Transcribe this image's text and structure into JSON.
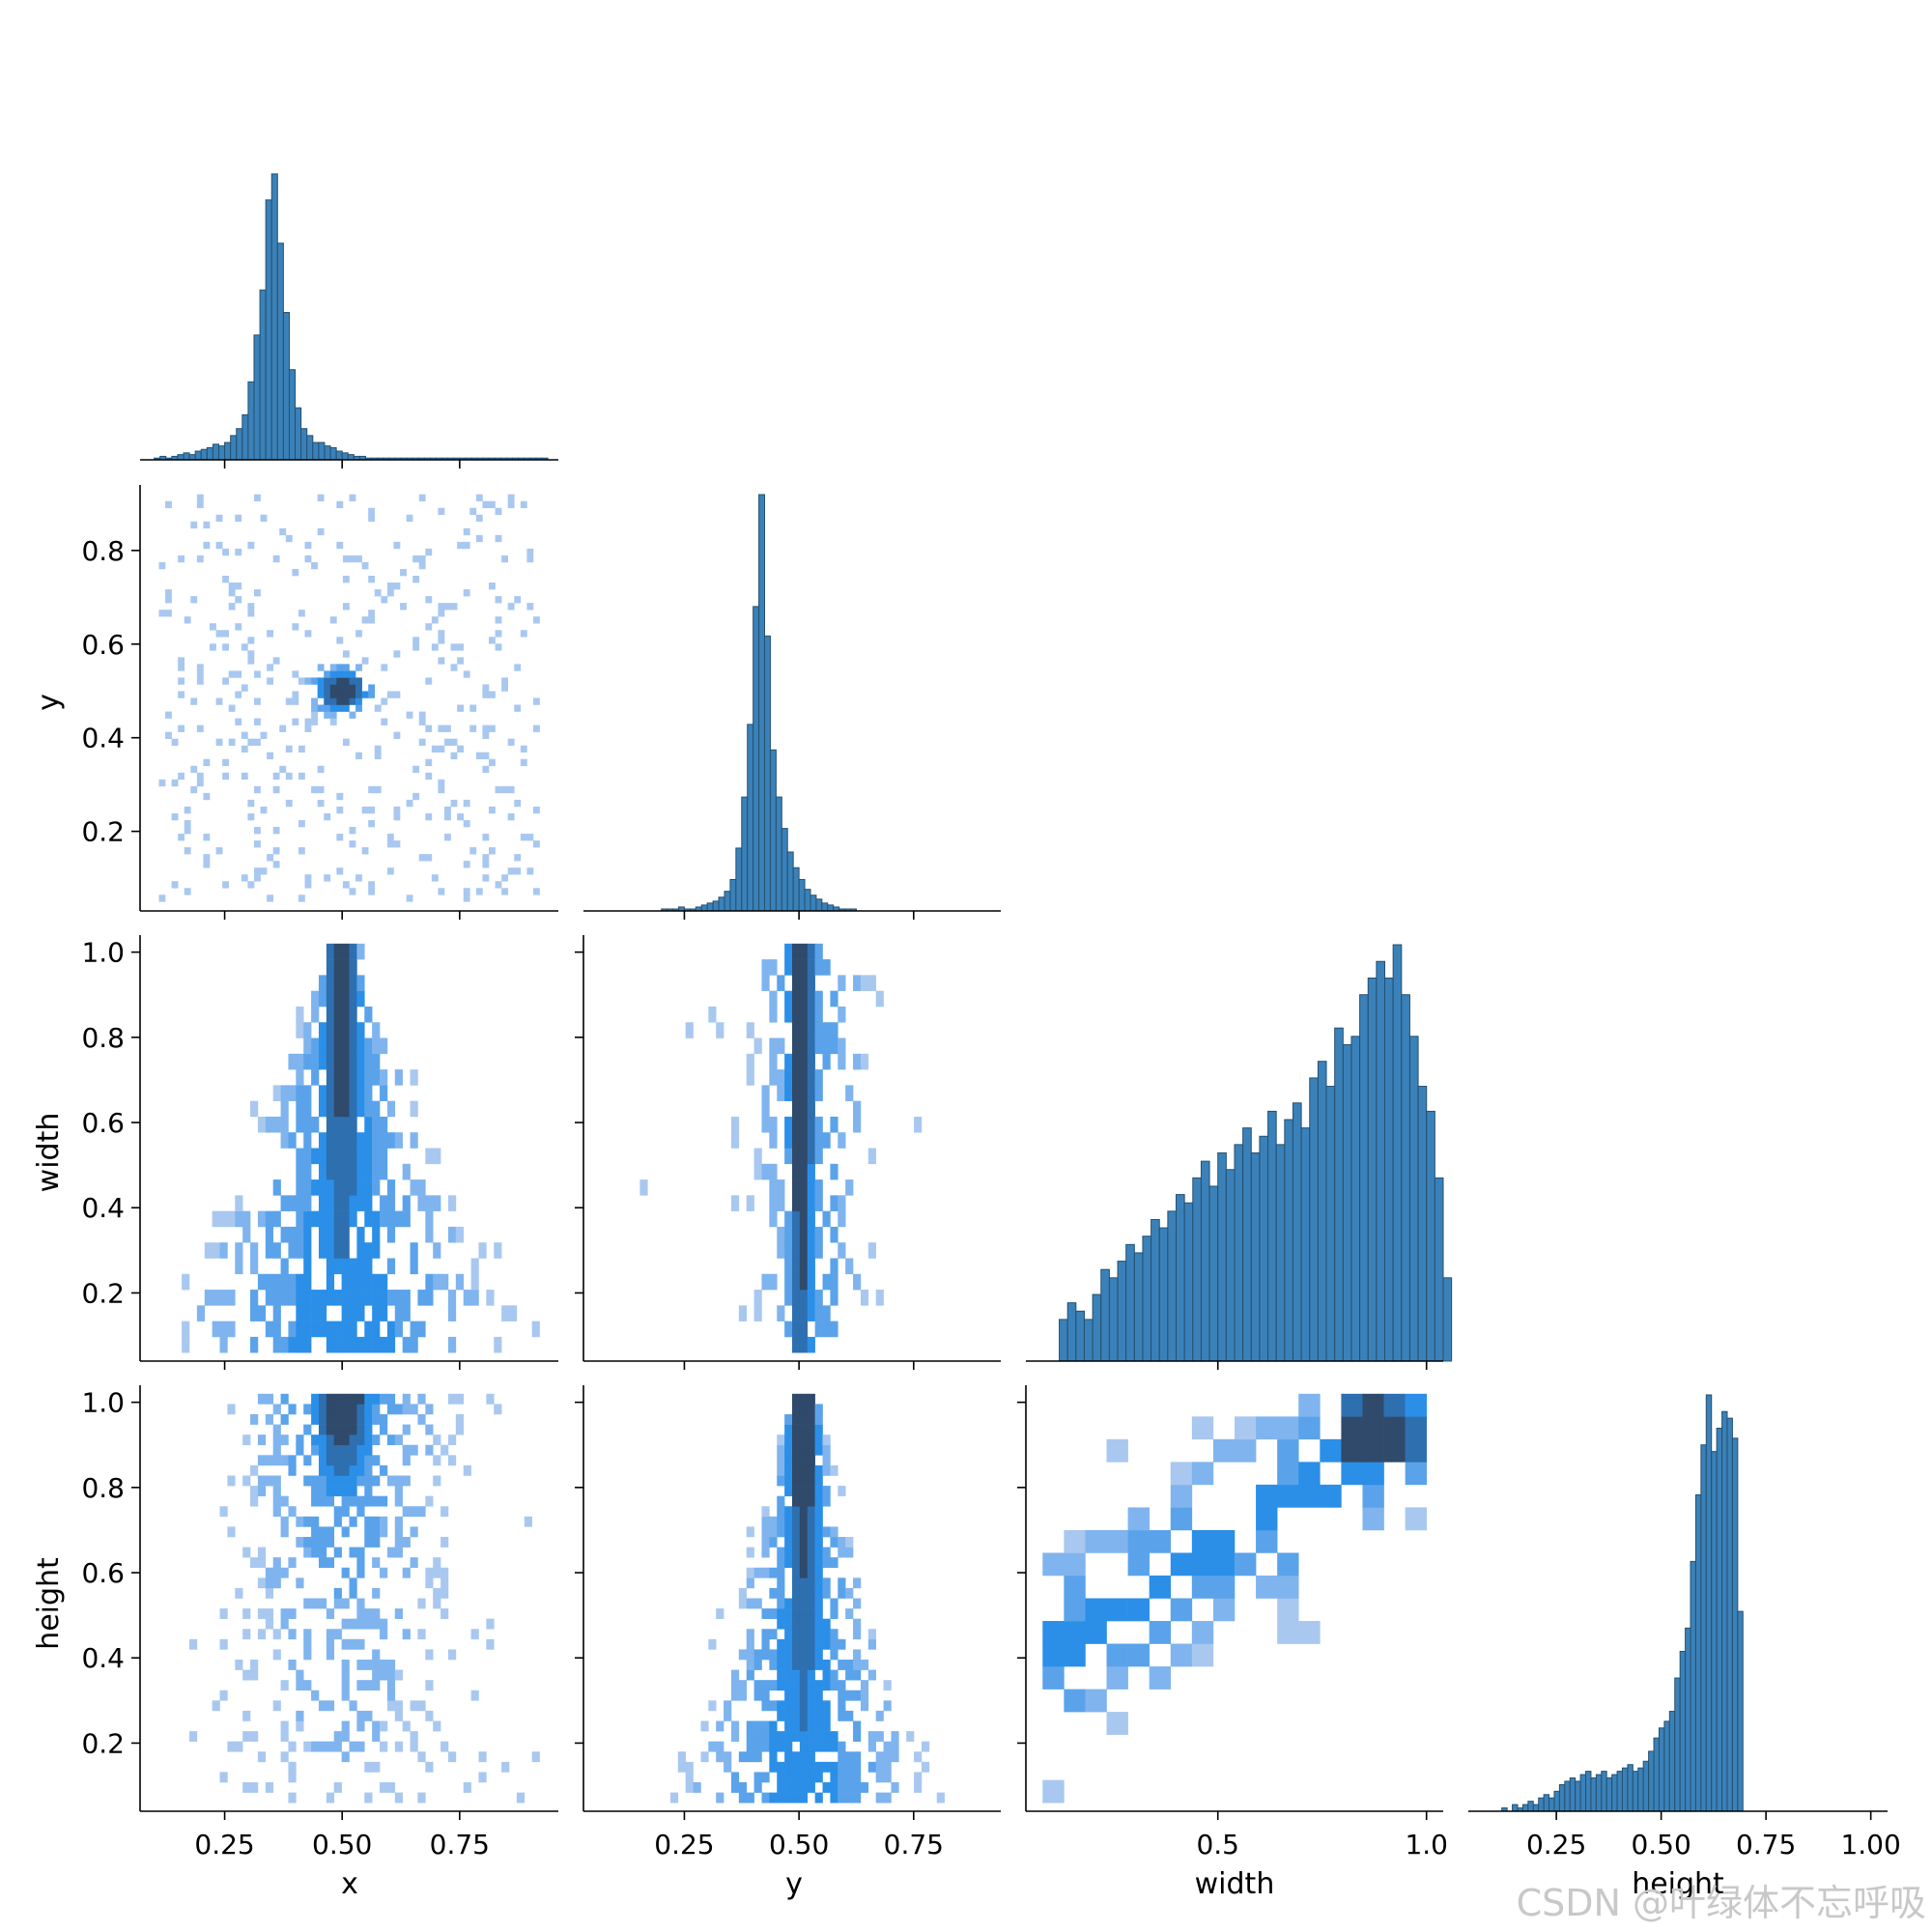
{
  "chart_data": {
    "type": "pairplot",
    "variables": [
      "x",
      "y",
      "width",
      "height"
    ],
    "diag_kind": "hist",
    "offdiag_kind": "hist2d",
    "corner": true,
    "colors": {
      "bar": "#3b81b9",
      "bar_edge": "#24506f",
      "light": "#a9c8f0",
      "mid": "#2b8fe8",
      "dark": "#2f4a6a"
    },
    "axes": {
      "x": {
        "label": "x",
        "lim": [
          0.07,
          0.96
        ],
        "ticks": [
          0.25,
          0.5,
          0.75
        ],
        "tick_labels": [
          "0.25",
          "0.50",
          "0.75"
        ]
      },
      "y": {
        "label": "y",
        "lim": [
          0.03,
          0.94
        ],
        "ticks": [
          0.2,
          0.4,
          0.6,
          0.8
        ],
        "tick_labels": [
          "0.2",
          "0.4",
          "0.6",
          "0.8"
        ],
        "diag_ticks": [
          0.25,
          0.5,
          0.75
        ],
        "diag_tick_labels": [
          "0.25",
          "0.50",
          "0.75"
        ]
      },
      "width": {
        "label": "width",
        "lim": [
          0.04,
          1.04
        ],
        "ticks": [
          0.2,
          0.4,
          0.6,
          0.8,
          1.0
        ],
        "tick_labels": [
          "0.2",
          "0.4",
          "0.6",
          "0.8",
          "1.0"
        ],
        "diag_ticks": [
          0.5,
          1.0
        ],
        "diag_tick_labels": [
          "0.5",
          "1.0"
        ]
      },
      "height": {
        "label": "height",
        "lim": [
          0.04,
          1.04
        ],
        "ticks": [
          0.2,
          0.4,
          0.6,
          0.8,
          1.0
        ],
        "tick_labels": [
          "0.2",
          "0.4",
          "0.6",
          "0.8",
          "1.0"
        ],
        "diag_ticks": [
          0.25,
          0.5,
          0.75,
          1.0
        ],
        "diag_tick_labels": [
          "0.25",
          "0.50",
          "0.75",
          "1.00"
        ]
      }
    },
    "diagonal_histograms": [
      {
        "variable": "x",
        "bin_start": 0.1,
        "bin_width": 0.0125,
        "counts": [
          1,
          2,
          1,
          2,
          3,
          4,
          3,
          5,
          6,
          7,
          9,
          8,
          10,
          14,
          18,
          26,
          45,
          72,
          98,
          150,
          165,
          125,
          85,
          52,
          30,
          18,
          14,
          10,
          10,
          8,
          7,
          5,
          4,
          3,
          2,
          2,
          1,
          1,
          1,
          1,
          1,
          1,
          1,
          1,
          1,
          1,
          1,
          1,
          1,
          1,
          1,
          1,
          1,
          1,
          1,
          1,
          1,
          1,
          1,
          1,
          1,
          1,
          1,
          1,
          1,
          1,
          1
        ]
      },
      {
        "variable": "y",
        "bin_start": 0.2,
        "bin_width": 0.0125,
        "counts": [
          1,
          1,
          1,
          2,
          1,
          1,
          2,
          3,
          4,
          5,
          7,
          10,
          16,
          32,
          58,
          95,
          155,
          212,
          140,
          82,
          58,
          42,
          30,
          22,
          16,
          11,
          8,
          6,
          4,
          3,
          2,
          1,
          1,
          1
        ]
      },
      {
        "variable": "width",
        "bin_start": 0.12,
        "bin_width": 0.02,
        "counts": [
          5,
          7,
          6,
          5,
          8,
          11,
          10,
          12,
          14,
          13,
          15,
          17,
          16,
          18,
          20,
          19,
          22,
          24,
          21,
          25,
          23,
          26,
          28,
          25,
          27,
          30,
          26,
          29,
          31,
          28,
          34,
          36,
          33,
          40,
          38,
          39,
          44,
          46,
          48,
          46,
          50,
          44,
          39,
          33,
          30,
          22,
          10
        ]
      },
      {
        "variable": "height",
        "bin_start": 0.12,
        "bin_width": 0.0125,
        "counts": [
          1,
          0,
          2,
          1,
          2,
          3,
          2,
          4,
          5,
          4,
          6,
          8,
          9,
          10,
          9,
          11,
          12,
          10,
          11,
          12,
          10,
          11,
          12,
          13,
          14,
          12,
          13,
          15,
          18,
          22,
          25,
          27,
          30,
          40,
          48,
          55,
          75,
          95,
          110,
          125,
          108,
          115,
          120,
          118,
          112,
          60
        ]
      }
    ],
    "bivariate_histograms": [
      {
        "x": "x",
        "y": "y",
        "shape": "dense core near (0.50, 0.50), sparse scatter between 0.1 and 0.9"
      },
      {
        "x": "x",
        "y": "width",
        "shape": "triangle, apex near x=0.50 at width 1.0, base from 0.1 to 0.9 at width 0.1"
      },
      {
        "x": "y",
        "y": "width",
        "shape": "narrow vertical band at y=0.50, spreading for low widths"
      },
      {
        "x": "x",
        "y": "height",
        "shape": "dense top centered at x=0.50, height 0.8-1.0, sparse below"
      },
      {
        "x": "y",
        "y": "height",
        "shape": "triangle, apex near y=0.50 at height 1.0, widening toward lower heights"
      },
      {
        "x": "width",
        "y": "height",
        "shape": "positive association; densest cell near width 0.85-0.95, height 0.85-1.0"
      }
    ]
  },
  "watermark": "CSDN @叶绿体不忘呼吸"
}
